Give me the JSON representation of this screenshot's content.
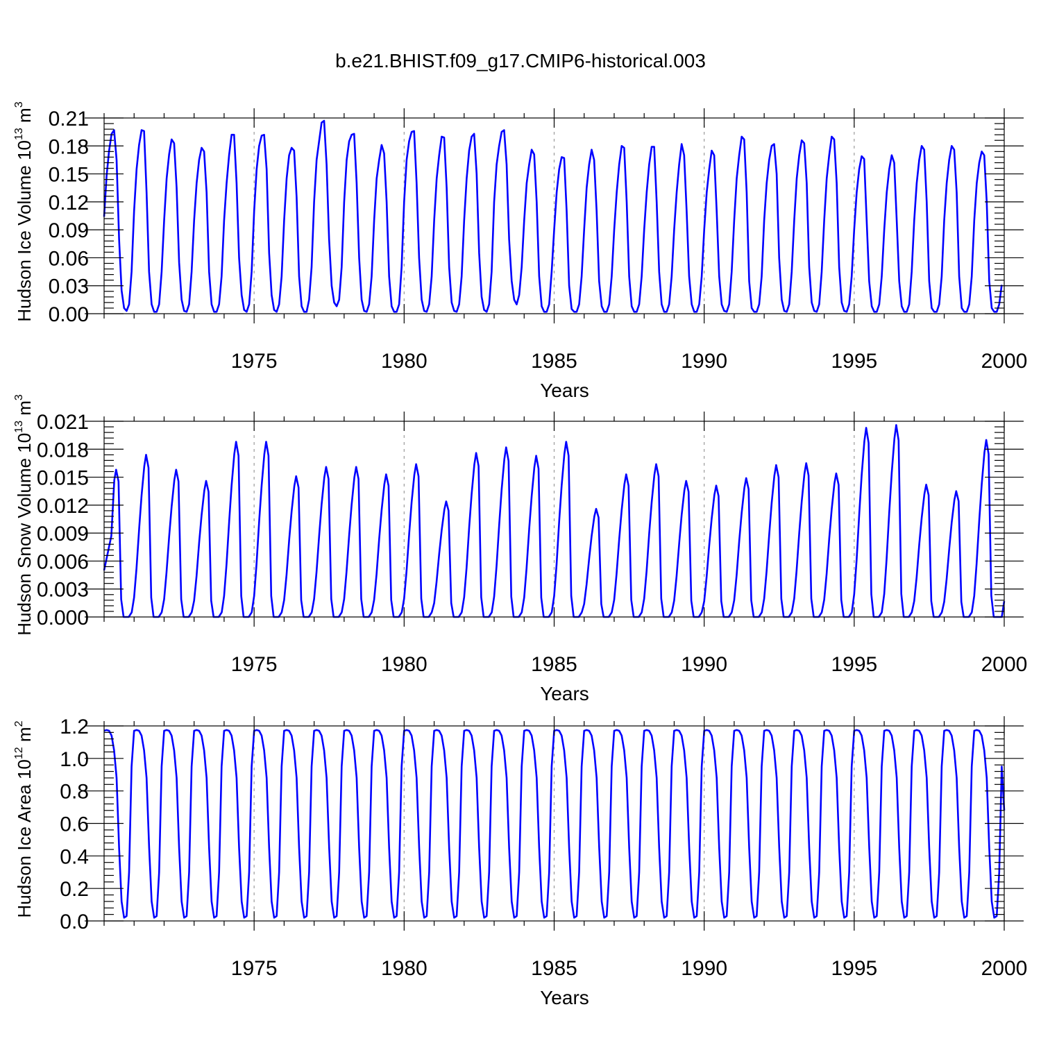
{
  "chart_data": {
    "title": "b.e21.BHIST.f09_g17.CMIP6-historical.003",
    "panels": [
      {
        "type": "line",
        "ylabel": "Hudson Ice Volume 10",
        "ylabel_exp": "13",
        "ylabel_unit": " m",
        "ylabel_unit_exp": "3",
        "xlabel": "Years",
        "xlim": [
          1970.0,
          2000.0
        ],
        "ylim": [
          0,
          0.21
        ],
        "yticks": [
          0.0,
          0.03,
          0.06,
          0.09,
          0.12,
          0.15,
          0.18,
          0.21
        ],
        "ytick_labels": [
          "0.00",
          "0.03",
          "0.06",
          "0.09",
          "0.12",
          "0.15",
          "0.18",
          "0.21"
        ],
        "xticks": [
          1975,
          1980,
          1985,
          1990,
          1995,
          2000
        ],
        "xtick_labels": [
          "1975",
          "1980",
          "1985",
          "1990",
          "1995",
          "2000"
        ],
        "series": [
          {
            "name": "Hudson Ice Volume",
            "color": "#0000ff",
            "start": 1970.0,
            "step_years": 0.0833333,
            "values": [
              0.104,
              0.148,
              0.175,
              0.193,
              0.197,
              0.165,
              0.08,
              0.025,
              0.006,
              0.003,
              0.01,
              0.045,
              0.11,
              0.155,
              0.181,
              0.197,
              0.196,
              0.13,
              0.045,
              0.01,
              0.002,
              0.002,
              0.01,
              0.045,
              0.1,
              0.145,
              0.171,
              0.187,
              0.183,
              0.135,
              0.055,
              0.015,
              0.003,
              0.002,
              0.01,
              0.045,
              0.1,
              0.14,
              0.165,
              0.178,
              0.174,
              0.13,
              0.045,
              0.01,
              0.002,
              0.002,
              0.01,
              0.04,
              0.1,
              0.14,
              0.17,
              0.192,
              0.192,
              0.14,
              0.06,
              0.02,
              0.004,
              0.002,
              0.01,
              0.045,
              0.11,
              0.155,
              0.18,
              0.191,
              0.192,
              0.155,
              0.065,
              0.02,
              0.004,
              0.002,
              0.01,
              0.04,
              0.1,
              0.145,
              0.17,
              0.178,
              0.175,
              0.125,
              0.04,
              0.008,
              0.002,
              0.002,
              0.015,
              0.05,
              0.12,
              0.165,
              0.185,
              0.205,
              0.207,
              0.16,
              0.08,
              0.03,
              0.012,
              0.008,
              0.015,
              0.05,
              0.12,
              0.165,
              0.185,
              0.192,
              0.193,
              0.14,
              0.06,
              0.015,
              0.003,
              0.002,
              0.01,
              0.04,
              0.1,
              0.145,
              0.165,
              0.181,
              0.172,
              0.12,
              0.04,
              0.008,
              0.002,
              0.002,
              0.01,
              0.05,
              0.12,
              0.165,
              0.185,
              0.195,
              0.196,
              0.14,
              0.06,
              0.015,
              0.003,
              0.002,
              0.01,
              0.04,
              0.1,
              0.145,
              0.17,
              0.19,
              0.189,
              0.135,
              0.05,
              0.012,
              0.003,
              0.002,
              0.01,
              0.04,
              0.1,
              0.145,
              0.175,
              0.19,
              0.193,
              0.15,
              0.065,
              0.018,
              0.004,
              0.002,
              0.01,
              0.045,
              0.12,
              0.16,
              0.18,
              0.195,
              0.197,
              0.16,
              0.08,
              0.035,
              0.015,
              0.01,
              0.02,
              0.05,
              0.1,
              0.14,
              0.16,
              0.176,
              0.171,
              0.12,
              0.04,
              0.008,
              0.002,
              0.002,
              0.01,
              0.045,
              0.09,
              0.13,
              0.155,
              0.168,
              0.167,
              0.11,
              0.03,
              0.005,
              0.002,
              0.002,
              0.01,
              0.04,
              0.09,
              0.135,
              0.16,
              0.176,
              0.165,
              0.11,
              0.035,
              0.008,
              0.002,
              0.002,
              0.01,
              0.04,
              0.09,
              0.13,
              0.16,
              0.18,
              0.178,
              0.12,
              0.04,
              0.008,
              0.002,
              0.002,
              0.01,
              0.04,
              0.09,
              0.13,
              0.16,
              0.179,
              0.179,
              0.12,
              0.045,
              0.01,
              0.002,
              0.002,
              0.01,
              0.04,
              0.09,
              0.13,
              0.16,
              0.182,
              0.17,
              0.11,
              0.04,
              0.01,
              0.002,
              0.002,
              0.01,
              0.04,
              0.09,
              0.13,
              0.155,
              0.175,
              0.17,
              0.11,
              0.04,
              0.01,
              0.003,
              0.002,
              0.01,
              0.045,
              0.1,
              0.145,
              0.17,
              0.19,
              0.187,
              0.13,
              0.035,
              0.006,
              0.002,
              0.002,
              0.01,
              0.04,
              0.1,
              0.14,
              0.165,
              0.18,
              0.182,
              0.15,
              0.06,
              0.015,
              0.003,
              0.002,
              0.01,
              0.045,
              0.1,
              0.145,
              0.17,
              0.186,
              0.183,
              0.14,
              0.05,
              0.012,
              0.003,
              0.002,
              0.01,
              0.045,
              0.1,
              0.145,
              0.17,
              0.19,
              0.187,
              0.14,
              0.05,
              0.012,
              0.003,
              0.002,
              0.01,
              0.04,
              0.09,
              0.13,
              0.155,
              0.169,
              0.166,
              0.1,
              0.035,
              0.008,
              0.002,
              0.002,
              0.01,
              0.04,
              0.09,
              0.13,
              0.155,
              0.17,
              0.162,
              0.1,
              0.035,
              0.008,
              0.002,
              0.002,
              0.01,
              0.045,
              0.1,
              0.14,
              0.165,
              0.18,
              0.176,
              0.12,
              0.035,
              0.006,
              0.002,
              0.002,
              0.01,
              0.04,
              0.1,
              0.14,
              0.165,
              0.18,
              0.176,
              0.13,
              0.04,
              0.006,
              0.002,
              0.002,
              0.01,
              0.04,
              0.1,
              0.14,
              0.162,
              0.174,
              0.17,
              0.12,
              0.035,
              0.006,
              0.002,
              0.002,
              0.01,
              0.031
            ]
          }
        ]
      },
      {
        "type": "line",
        "ylabel": "Hudson Snow Volume 10",
        "ylabel_exp": "13",
        "ylabel_unit": " m",
        "ylabel_unit_exp": "3",
        "xlabel": "Years",
        "xlim": [
          1970.0,
          2000.0
        ],
        "ylim": [
          0,
          0.021
        ],
        "yticks": [
          0.0,
          0.003,
          0.006,
          0.009,
          0.012,
          0.015,
          0.018,
          0.021
        ],
        "ytick_labels": [
          "0.000",
          "0.003",
          "0.006",
          "0.009",
          "0.012",
          "0.015",
          "0.018",
          "0.021"
        ],
        "xticks": [
          1975,
          1980,
          1985,
          1990,
          1995,
          2000
        ],
        "xtick_labels": [
          "1975",
          "1980",
          "1985",
          "1990",
          "1995",
          "2000"
        ],
        "series": [
          {
            "name": "Hudson Snow Volume",
            "color": "#0000ff",
            "peaks": [
              [
                1970.4,
                0.0158
              ],
              [
                1971.4,
                0.0174
              ],
              [
                1972.4,
                0.0158
              ],
              [
                1973.4,
                0.0146
              ],
              [
                1974.4,
                0.0188
              ],
              [
                1975.4,
                0.0188
              ],
              [
                1976.4,
                0.0151
              ],
              [
                1977.4,
                0.0161
              ],
              [
                1978.4,
                0.0161
              ],
              [
                1979.4,
                0.0153
              ],
              [
                1980.4,
                0.0164
              ],
              [
                1981.4,
                0.0124
              ],
              [
                1982.4,
                0.0176
              ],
              [
                1983.4,
                0.0182
              ],
              [
                1984.4,
                0.0173
              ],
              [
                1985.4,
                0.0188
              ],
              [
                1986.4,
                0.0116
              ],
              [
                1987.4,
                0.0153
              ],
              [
                1988.4,
                0.0164
              ],
              [
                1989.4,
                0.0146
              ],
              [
                1990.4,
                0.0141
              ],
              [
                1991.4,
                0.0149
              ],
              [
                1992.4,
                0.0163
              ],
              [
                1993.4,
                0.0165
              ],
              [
                1994.4,
                0.0154
              ],
              [
                1995.4,
                0.0203
              ],
              [
                1996.4,
                0.0206
              ],
              [
                1997.4,
                0.0142
              ],
              [
                1998.4,
                0.0135
              ],
              [
                1999.4,
                0.019
              ]
            ],
            "start_value": 0.005,
            "end_value": 0.0017
          }
        ]
      },
      {
        "type": "line",
        "ylabel": "Hudson Ice Area 10",
        "ylabel_exp": "12",
        "ylabel_unit": " m",
        "ylabel_unit_exp": "2",
        "xlabel": "Years",
        "xlim": [
          1970.0,
          2000.0
        ],
        "ylim": [
          0,
          1.2
        ],
        "yticks": [
          0.0,
          0.2,
          0.4,
          0.6,
          0.8,
          1.0,
          1.2
        ],
        "ytick_labels": [
          "0.0",
          "0.2",
          "0.4",
          "0.6",
          "0.8",
          "1.0",
          "1.2"
        ],
        "xticks": [
          1975,
          1980,
          1985,
          1990,
          1995,
          2000
        ],
        "xtick_labels": [
          "1975",
          "1980",
          "1985",
          "1990",
          "1995",
          "2000"
        ],
        "series": [
          {
            "name": "Hudson Ice Area",
            "color": "#0000ff",
            "annual_cycle": [
              1.17,
              1.175,
              1.17,
              1.14,
              1.05,
              0.88,
              0.45,
              0.12,
              0.02,
              0.03,
              0.3,
              0.95
            ],
            "end_value": 0.68
          }
        ]
      }
    ]
  }
}
